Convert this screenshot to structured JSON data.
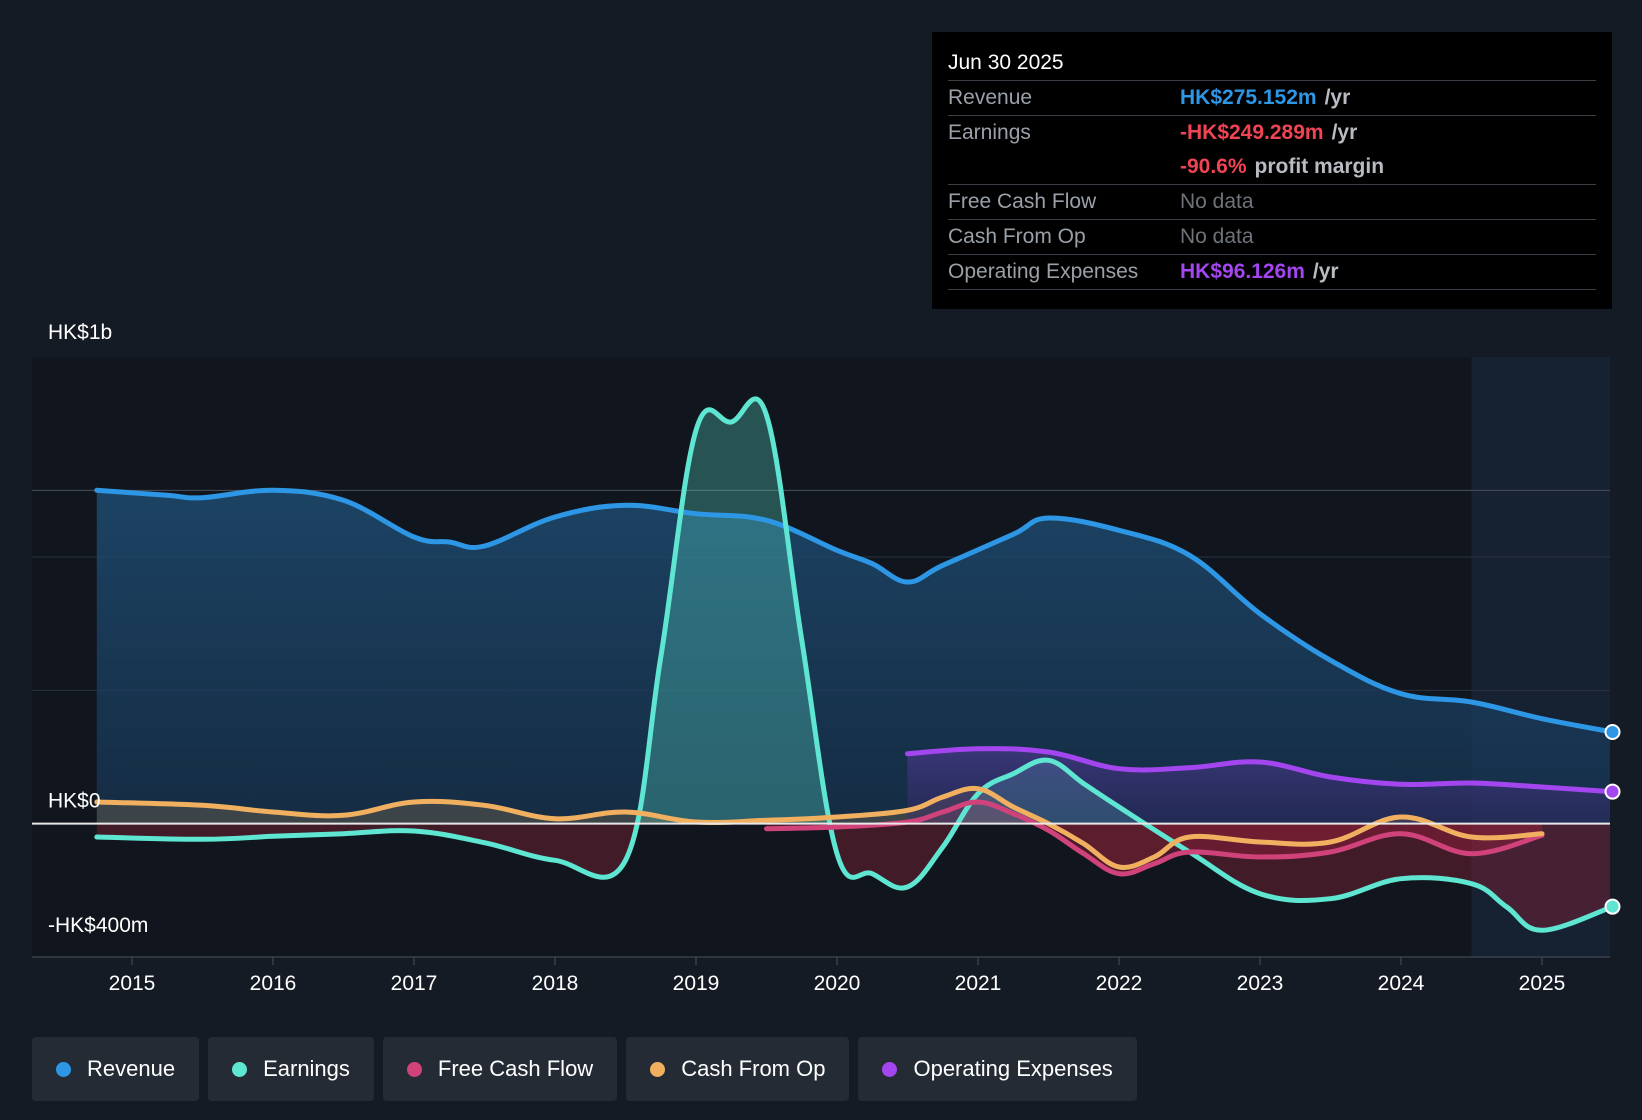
{
  "tooltip": {
    "date": "Jun 30 2025",
    "revenue_label": "Revenue",
    "revenue_value": "HK$275.152m",
    "earnings_label": "Earnings",
    "earnings_value": "-HK$249.289m",
    "margin_value": "-90.6%",
    "margin_text": "profit margin",
    "fcf_label": "Free Cash Flow",
    "fcf_value": "No data",
    "cfo_label": "Cash From Op",
    "cfo_value": "No data",
    "opex_label": "Operating Expenses",
    "opex_value": "HK$96.126m",
    "unit": "/yr"
  },
  "colors": {
    "revenue": "#2d97e6",
    "earnings": "#5ee6d2",
    "fcf": "#d0437a",
    "cfo": "#f0b060",
    "opex": "#a346f0",
    "negative": "#f04455"
  },
  "legend": [
    {
      "label": "Revenue",
      "color": "#2d97e6"
    },
    {
      "label": "Earnings",
      "color": "#5ee6d2"
    },
    {
      "label": "Free Cash Flow",
      "color": "#d0437a"
    },
    {
      "label": "Cash From Op",
      "color": "#f0b060"
    },
    {
      "label": "Operating Expenses",
      "color": "#a346f0"
    }
  ],
  "chart_data": {
    "type": "line",
    "title": "",
    "y_top_label": "HK$1b",
    "y_zero_label": "HK$0",
    "y_bottom_label": "-HK$400m",
    "ylim": [
      -400,
      1400
    ],
    "xlim": [
      2014.0,
      2025.55
    ],
    "x_ticks": [
      "2015",
      "2016",
      "2017",
      "2018",
      "2019",
      "2020",
      "2021",
      "2022",
      "2023",
      "2024",
      "2025"
    ],
    "series": [
      {
        "name": "Revenue",
        "key": "revenue",
        "points": [
          [
            2014.75,
            1000
          ],
          [
            2015.25,
            985
          ],
          [
            2015.5,
            978
          ],
          [
            2016.0,
            1000
          ],
          [
            2016.5,
            970
          ],
          [
            2017.0,
            860
          ],
          [
            2017.25,
            845
          ],
          [
            2017.5,
            833
          ],
          [
            2018.0,
            920
          ],
          [
            2018.5,
            955
          ],
          [
            2019.0,
            930
          ],
          [
            2019.5,
            910
          ],
          [
            2020.0,
            820
          ],
          [
            2020.25,
            780
          ],
          [
            2020.5,
            725
          ],
          [
            2020.75,
            775
          ],
          [
            2021.25,
            868
          ],
          [
            2021.5,
            917
          ],
          [
            2022.0,
            880
          ],
          [
            2022.5,
            805
          ],
          [
            2023.0,
            630
          ],
          [
            2023.5,
            490
          ],
          [
            2024.0,
            390
          ],
          [
            2024.5,
            365
          ],
          [
            2025.0,
            315
          ],
          [
            2025.5,
            275
          ]
        ]
      },
      {
        "name": "Earnings",
        "key": "earnings",
        "points": [
          [
            2014.75,
            -40
          ],
          [
            2015.5,
            -47
          ],
          [
            2016.0,
            -38
          ],
          [
            2016.5,
            -30
          ],
          [
            2017.0,
            -22
          ],
          [
            2017.5,
            -57
          ],
          [
            2018.0,
            -110
          ],
          [
            2018.5,
            -110
          ],
          [
            2018.75,
            500
          ],
          [
            2019.0,
            1180
          ],
          [
            2019.25,
            1205
          ],
          [
            2019.5,
            1225
          ],
          [
            2019.75,
            550
          ],
          [
            2020.0,
            -90
          ],
          [
            2020.25,
            -150
          ],
          [
            2020.5,
            -190
          ],
          [
            2020.75,
            -70
          ],
          [
            2021.0,
            90
          ],
          [
            2021.25,
            150
          ],
          [
            2021.5,
            190
          ],
          [
            2021.75,
            120
          ],
          [
            2022.0,
            50
          ],
          [
            2022.5,
            -85
          ],
          [
            2023.0,
            -210
          ],
          [
            2023.5,
            -225
          ],
          [
            2024.0,
            -165
          ],
          [
            2024.5,
            -180
          ],
          [
            2024.75,
            -250
          ],
          [
            2025.0,
            -320
          ],
          [
            2025.5,
            -249
          ]
        ]
      },
      {
        "name": "Free Cash Flow",
        "key": "fcf",
        "points": [
          [
            2019.5,
            -15
          ],
          [
            2020.0,
            -10
          ],
          [
            2020.5,
            5
          ],
          [
            2020.75,
            35
          ],
          [
            2021.0,
            65
          ],
          [
            2021.25,
            30
          ],
          [
            2021.5,
            -20
          ],
          [
            2021.75,
            -90
          ],
          [
            2022.0,
            -150
          ],
          [
            2022.25,
            -120
          ],
          [
            2022.5,
            -85
          ],
          [
            2023.0,
            -100
          ],
          [
            2023.5,
            -85
          ],
          [
            2024.0,
            -30
          ],
          [
            2024.5,
            -90
          ],
          [
            2025.0,
            -35
          ]
        ]
      },
      {
        "name": "Cash From Op",
        "key": "cfo",
        "points": [
          [
            2014.75,
            65
          ],
          [
            2015.5,
            55
          ],
          [
            2016.0,
            35
          ],
          [
            2016.5,
            25
          ],
          [
            2017.0,
            65
          ],
          [
            2017.5,
            55
          ],
          [
            2018.0,
            15
          ],
          [
            2018.5,
            35
          ],
          [
            2019.0,
            5
          ],
          [
            2019.5,
            10
          ],
          [
            2020.0,
            20
          ],
          [
            2020.5,
            40
          ],
          [
            2020.75,
            80
          ],
          [
            2021.0,
            105
          ],
          [
            2021.25,
            50
          ],
          [
            2021.5,
            0
          ],
          [
            2021.75,
            -60
          ],
          [
            2022.0,
            -130
          ],
          [
            2022.25,
            -100
          ],
          [
            2022.5,
            -40
          ],
          [
            2023.0,
            -55
          ],
          [
            2023.5,
            -55
          ],
          [
            2024.0,
            20
          ],
          [
            2024.5,
            -40
          ],
          [
            2025.0,
            -30
          ]
        ]
      },
      {
        "name": "Operating Expenses",
        "key": "opex",
        "points": [
          [
            2020.5,
            210
          ],
          [
            2021.0,
            225
          ],
          [
            2021.5,
            215
          ],
          [
            2022.0,
            165
          ],
          [
            2022.5,
            168
          ],
          [
            2023.0,
            185
          ],
          [
            2023.5,
            140
          ],
          [
            2024.0,
            118
          ],
          [
            2024.5,
            122
          ],
          [
            2025.0,
            110
          ],
          [
            2025.5,
            96
          ]
        ]
      }
    ]
  }
}
